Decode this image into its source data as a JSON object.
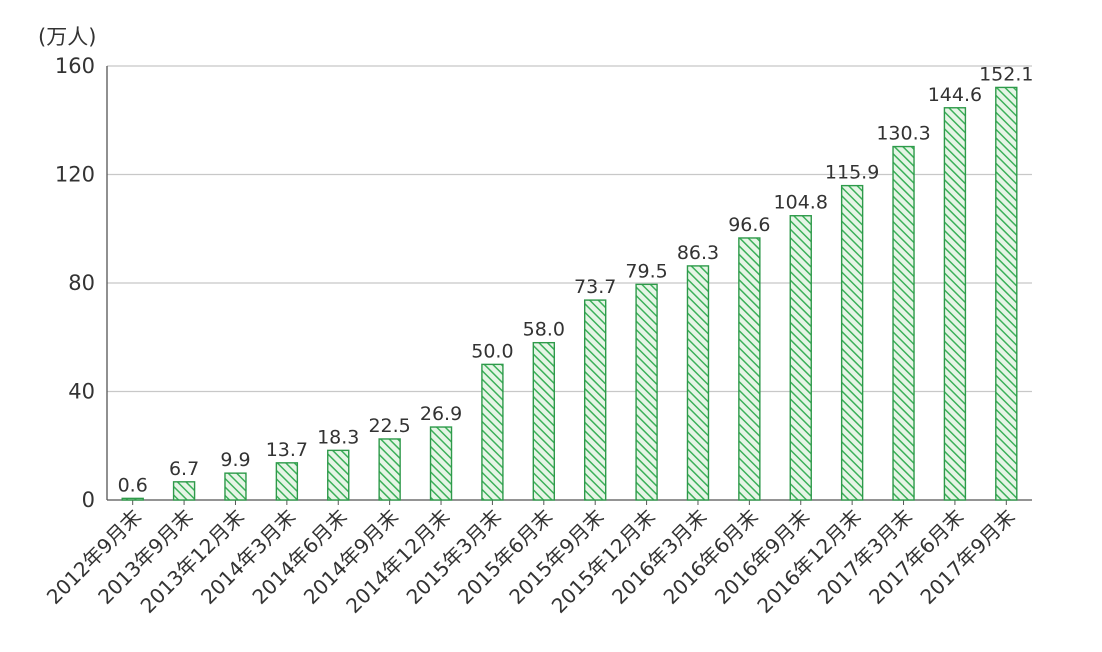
{
  "chart_data": {
    "type": "bar",
    "unit_label": "(万人)",
    "categories": [
      "2012年9月末",
      "2013年9月末",
      "2013年12月末",
      "2014年3月末",
      "2014年6月末",
      "2014年9月末",
      "2014年12月末",
      "2015年3月末",
      "2015年6月末",
      "2015年9月末",
      "2015年12月末",
      "2016年3月末",
      "2016年6月末",
      "2016年9月末",
      "2016年12月末",
      "2017年3月末",
      "2017年6月末",
      "2017年9月末"
    ],
    "values": [
      0.6,
      6.7,
      9.9,
      13.7,
      18.3,
      22.5,
      26.9,
      50.0,
      58.0,
      73.7,
      79.5,
      86.3,
      96.6,
      104.8,
      115.9,
      130.3,
      144.6,
      152.1
    ],
    "value_labels": [
      "0.6",
      "6.7",
      "9.9",
      "13.7",
      "18.3",
      "22.5",
      "26.9",
      "50.0",
      "58.0",
      "73.7",
      "79.5",
      "86.3",
      "96.6",
      "104.8",
      "115.9",
      "130.3",
      "144.6",
      "152.1"
    ],
    "ylim": [
      0,
      160
    ],
    "yticks": [
      0,
      40,
      80,
      120,
      160
    ],
    "grid": true,
    "legend": "none",
    "colors": {
      "bar_fill": "#e6f5e6",
      "bar_hatch": "#3cb05a",
      "bar_edge": "#2e9a4a",
      "grid": "#c8c8c8",
      "axis": "#555555"
    }
  }
}
